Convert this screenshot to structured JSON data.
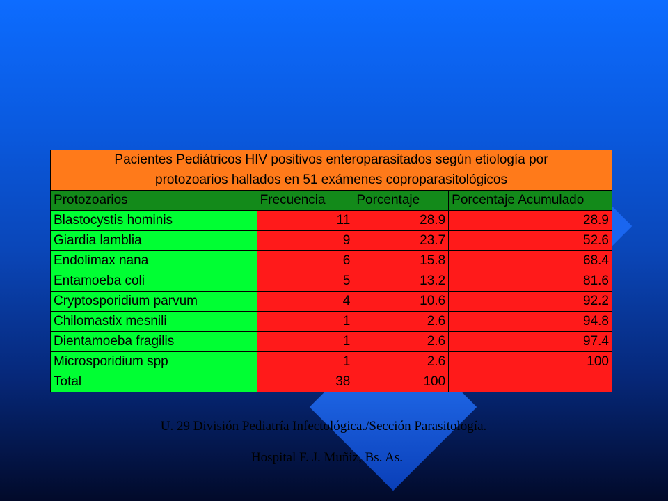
{
  "table": {
    "title_line1": "Pacientes Pediátricos HIV positivos enteroparasitados según etiología por",
    "title_line2": "protozoarios hallados en 51 exámenes coproparasitológicos",
    "headers": [
      "Protozoarios",
      "Frecuencia",
      "Porcentaje",
      "Porcentaje Acumulado"
    ],
    "rows": [
      {
        "name": "Blastocystis hominis",
        "freq": "11",
        "pct": "28.9",
        "cum": "28.9"
      },
      {
        "name": "Giardia lamblia",
        "freq": "9",
        "pct": "23.7",
        "cum": "52.6"
      },
      {
        "name": "Endolimax nana",
        "freq": "6",
        "pct": "15.8",
        "cum": "68.4"
      },
      {
        "name": "Entamoeba coli",
        "freq": "5",
        "pct": "13.2",
        "cum": "81.6"
      },
      {
        "name": "Cryptosporidium parvum",
        "freq": "4",
        "pct": "10.6",
        "cum": "92.2"
      },
      {
        "name": "Chilomastix mesnili",
        "freq": "1",
        "pct": "2.6",
        "cum": "94.8"
      },
      {
        "name": "Dientamoeba fragilis",
        "freq": "1",
        "pct": "2.6",
        "cum": "97.4"
      },
      {
        "name": "Microsporidium spp",
        "freq": "1",
        "pct": "2.6",
        "cum": "100"
      },
      {
        "name": "Total",
        "freq": "38",
        "pct": "100",
        "cum": ""
      }
    ]
  },
  "footer": {
    "line1": "U. 29  División Pediatría Infectológica./Sección  Parasitología.",
    "line2": "Hospital F. J. Muñiz, Bs. As."
  },
  "colors": {
    "title_bg": "#ff7a1a",
    "header_bg": "#138a1a",
    "name_bg": "#00ff33",
    "value_bg": "#ff1a1a"
  }
}
